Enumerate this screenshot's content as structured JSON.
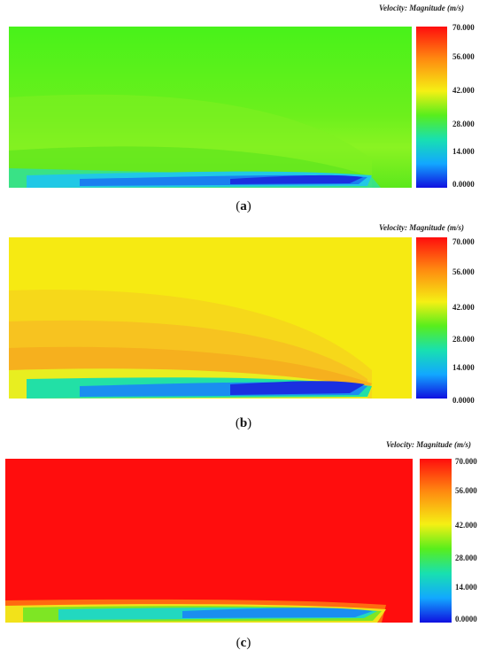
{
  "colorbar": {
    "title": "Velocity: Magnitude (m/s)",
    "ticks": [
      "70.000",
      "56.000",
      "42.000",
      "28.000",
      "14.000",
      "0.0000"
    ]
  },
  "panels": [
    {
      "caption_open": "(",
      "caption_letter": "a",
      "caption_close": ")",
      "background": "#4cf21c",
      "band": "#7ef020"
    },
    {
      "caption_open": "(",
      "caption_letter": "b",
      "caption_close": ")",
      "background": "#f6ea12",
      "band": "#f7c320"
    },
    {
      "caption_open": "(",
      "caption_letter": "c",
      "caption_close": ")",
      "background": "#ff0d0d",
      "band": "#ff2e0d"
    }
  ]
}
